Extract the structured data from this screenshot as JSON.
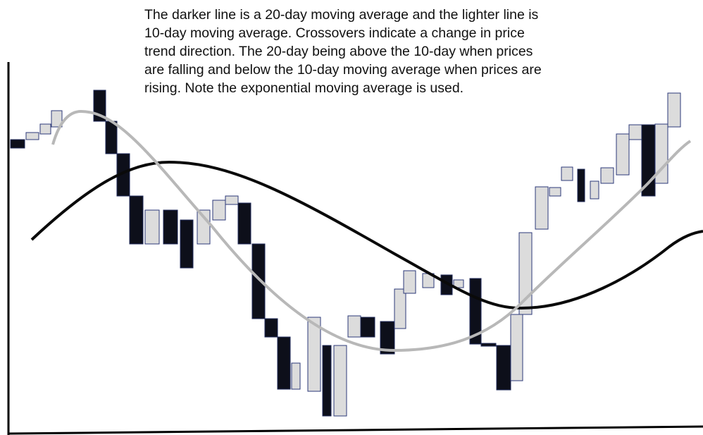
{
  "caption": {
    "lines": [
      "The darker line is a 20-day moving average and the lighter line is",
      "10-day moving average. Crossovers indicate a change in price",
      "trend direction. The 20-day being above the 10-day when prices",
      "are falling and below the 10-day moving average when prices are",
      "rising. Note the exponential moving average is used."
    ]
  }
}
